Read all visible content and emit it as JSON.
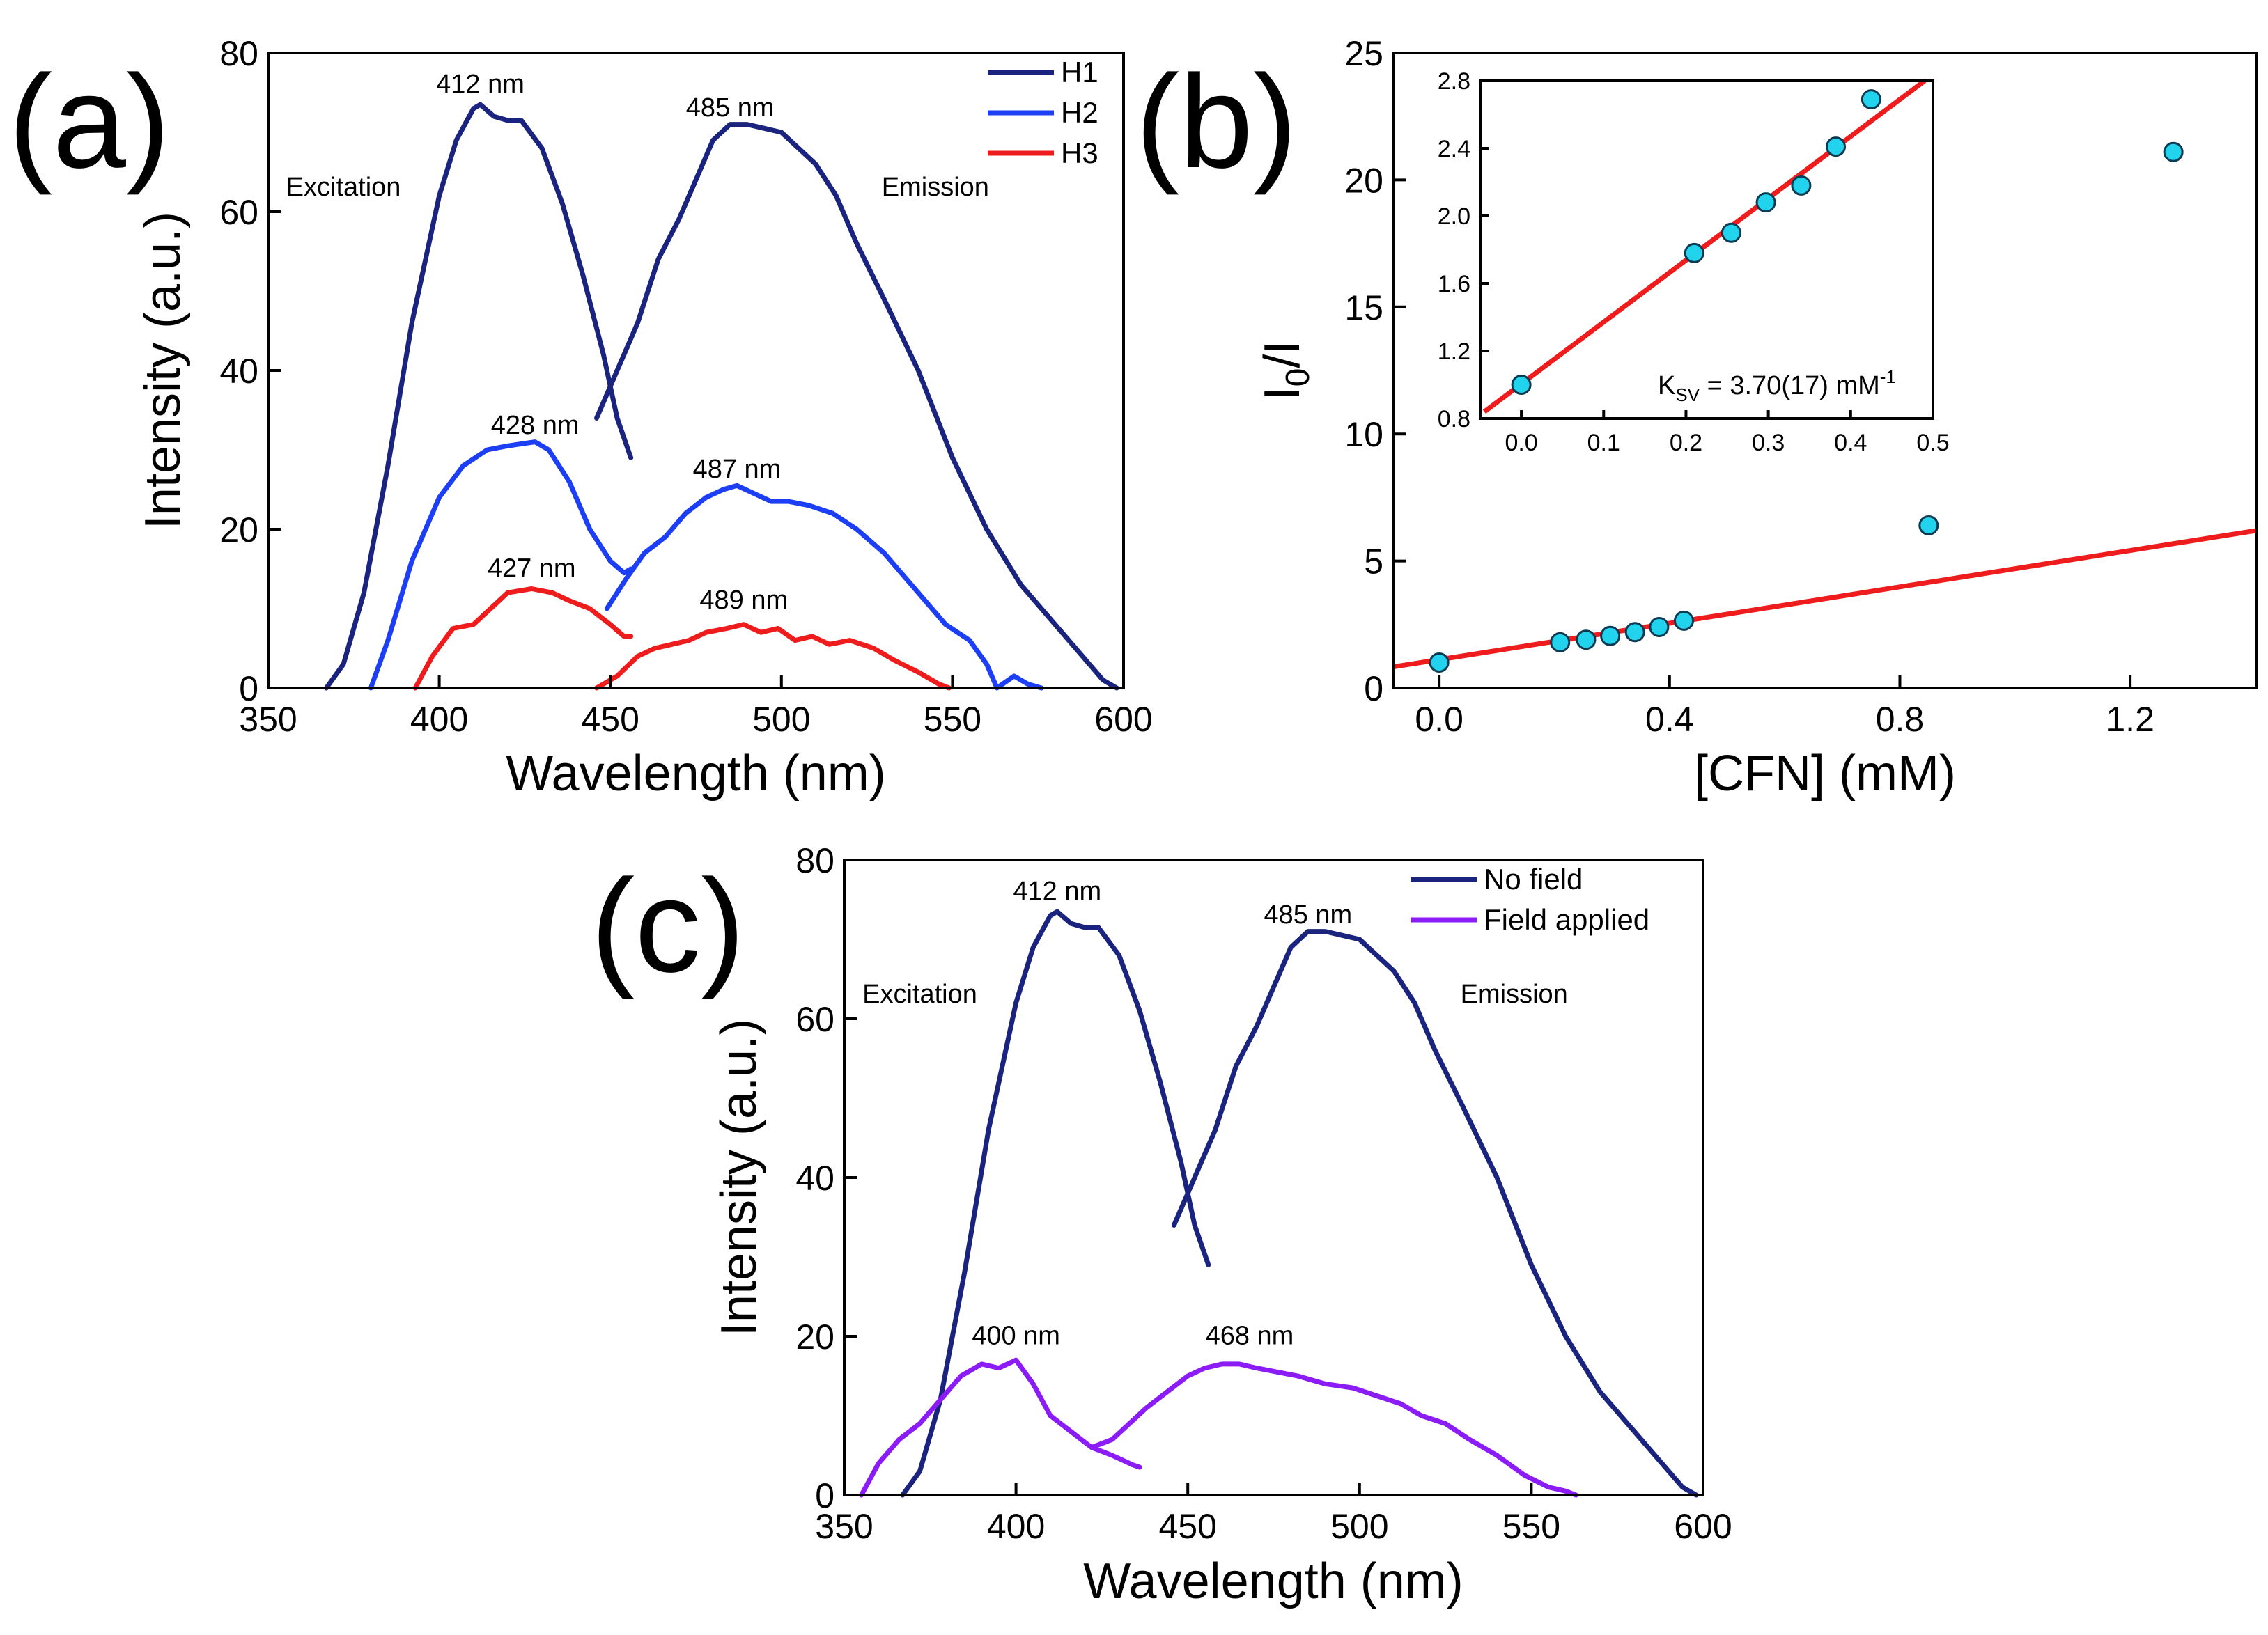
{
  "panels": {
    "a": {
      "letter": "(a)"
    },
    "b": {
      "letter": "(b)"
    },
    "c": {
      "letter": "(c)"
    }
  },
  "chart_data": [
    {
      "id": "a",
      "type": "line",
      "xlabel": "Wavelength (nm)",
      "ylabel": "Intensity (a.u.)",
      "xlim": [
        350,
        600
      ],
      "ylim": [
        0,
        80
      ],
      "xticks": [
        350,
        400,
        450,
        500,
        550,
        600
      ],
      "yticks": [
        0,
        20,
        40,
        60,
        80
      ],
      "legend_position": "top-right",
      "legend": [
        {
          "name": "H1",
          "color": "#1a237e"
        },
        {
          "name": "H2",
          "color": "#1c3ff5"
        },
        {
          "name": "H3",
          "color": "#ee1c1c"
        }
      ],
      "series": [
        {
          "name": "H1",
          "part": "excitation",
          "color": "#1a237e",
          "x": [
            367,
            372,
            378,
            385,
            392,
            400,
            405,
            410,
            412,
            416,
            420,
            424,
            430,
            436,
            442,
            448,
            452,
            456
          ],
          "y": [
            0,
            3,
            12,
            28,
            46,
            62,
            69,
            73,
            73.5,
            72,
            71.5,
            71.5,
            68,
            61,
            52,
            42,
            34,
            29
          ]
        },
        {
          "name": "H1",
          "part": "emission",
          "color": "#1a237e",
          "x": [
            446,
            452,
            458,
            464,
            470,
            476,
            480,
            485,
            490,
            495,
            500,
            505,
            510,
            516,
            522,
            530,
            540,
            550,
            560,
            570,
            580,
            588,
            594,
            598
          ],
          "y": [
            34,
            40,
            46,
            54,
            59,
            65,
            69,
            71,
            71,
            70.5,
            70,
            68,
            66,
            62,
            56,
            49,
            40,
            29,
            20,
            13,
            8,
            4,
            1,
            0
          ]
        },
        {
          "name": "H2",
          "part": "excitation",
          "color": "#1c3ff5",
          "x": [
            380,
            385,
            392,
            400,
            407,
            414,
            420,
            428,
            432,
            438,
            444,
            450,
            454,
            456
          ],
          "y": [
            0,
            6,
            16,
            24,
            28,
            30,
            30.5,
            31,
            30,
            26,
            20,
            16,
            14.5,
            15
          ]
        },
        {
          "name": "H2",
          "part": "emission",
          "color": "#1c3ff5",
          "x": [
            449,
            455,
            460,
            466,
            472,
            478,
            483,
            487,
            492,
            497,
            502,
            508,
            515,
            522,
            530,
            540,
            548,
            555,
            560,
            563,
            568,
            572,
            576
          ],
          "y": [
            10,
            14,
            17,
            19,
            22,
            24,
            25,
            25.5,
            24.5,
            23.5,
            23.5,
            23,
            22,
            20,
            17,
            12,
            8,
            6,
            3,
            0,
            1.5,
            0.5,
            0
          ]
        },
        {
          "name": "H3",
          "part": "excitation",
          "color": "#ee1c1c",
          "x": [
            393,
            398,
            404,
            410,
            415,
            420,
            427,
            433,
            438,
            444,
            450,
            454,
            456
          ],
          "y": [
            0,
            4,
            7.5,
            8,
            10,
            12,
            12.5,
            12,
            11,
            10,
            8,
            6.5,
            6.5
          ]
        },
        {
          "name": "H3",
          "part": "emission",
          "color": "#ee1c1c",
          "x": [
            446,
            452,
            458,
            463,
            468,
            473,
            478,
            484,
            489,
            494,
            499,
            504,
            509,
            514,
            520,
            527,
            533,
            540,
            546,
            549
          ],
          "y": [
            0,
            1.5,
            4,
            5,
            5.5,
            6,
            7,
            7.5,
            8,
            7,
            7.5,
            6,
            6.5,
            5.5,
            6,
            5,
            3.5,
            2,
            0.5,
            0
          ]
        }
      ],
      "annotations": [
        {
          "text": "412 nm",
          "x": 412,
          "y": 75
        },
        {
          "text": "485 nm",
          "x": 485,
          "y": 72
        },
        {
          "text": "Excitation",
          "x": 372,
          "y": 62
        },
        {
          "text": "Emission",
          "x": 545,
          "y": 62
        },
        {
          "text": "428 nm",
          "x": 428,
          "y": 32
        },
        {
          "text": "487 nm",
          "x": 487,
          "y": 26.5
        },
        {
          "text": "427 nm",
          "x": 427,
          "y": 14
        },
        {
          "text": "489 nm",
          "x": 489,
          "y": 10
        }
      ]
    },
    {
      "id": "b",
      "type": "scatter",
      "xlabel": "[CFN] (mM)",
      "ylabel": "I0/I",
      "ylabel_main": "I",
      "ylabel_sub": "0",
      "ylabel_tail": "/I",
      "xlim": [
        -0.08,
        1.42
      ],
      "ylim": [
        0,
        25
      ],
      "xticks": [
        0.0,
        0.4,
        0.8,
        1.2
      ],
      "yticks": [
        0,
        5,
        10,
        15,
        20,
        25
      ],
      "marker_color": "#22d3ee",
      "fit_color": "#ee1c1c",
      "series": [
        {
          "name": "I0/I",
          "x": [
            0.0,
            0.21,
            0.255,
            0.297,
            0.34,
            0.382,
            0.425,
            0.85,
            1.275
          ],
          "y": [
            1.0,
            1.8,
            1.9,
            2.05,
            2.2,
            2.4,
            2.65,
            6.4,
            21.1
          ]
        }
      ],
      "fit": {
        "x": [
          -0.08,
          1.42
        ],
        "y": [
          0.83,
          6.2
        ]
      },
      "inset": {
        "type": "scatter",
        "xlim": [
          -0.05,
          0.5
        ],
        "ylim": [
          0.8,
          2.8
        ],
        "xticks": [
          0.0,
          0.1,
          0.2,
          0.3,
          0.4,
          0.5
        ],
        "yticks": [
          0.8,
          1.2,
          1.6,
          2.0,
          2.4,
          2.8
        ],
        "x": [
          0.0,
          0.21,
          0.255,
          0.297,
          0.34,
          0.382,
          0.425
        ],
        "y": [
          1.0,
          1.78,
          1.9,
          2.08,
          2.18,
          2.41,
          2.69
        ],
        "fit": {
          "x": [
            -0.045,
            0.49
          ],
          "y": [
            0.84,
            2.8
          ]
        },
        "label": "KSV = 3.70(17) mM-1",
        "label_main": "K",
        "label_sub": "SV",
        "label_value": " = 3.70(17) mM",
        "label_sup": "-1"
      }
    },
    {
      "id": "c",
      "type": "line",
      "xlabel": "Wavelength (nm)",
      "ylabel": "Intensity (a.u.)",
      "xlim": [
        350,
        600
      ],
      "ylim": [
        0,
        80
      ],
      "xticks": [
        350,
        400,
        450,
        500,
        550,
        600
      ],
      "yticks": [
        0,
        20,
        40,
        60,
        80
      ],
      "legend_position": "top-right",
      "legend": [
        {
          "name": "No field",
          "color": "#1a237e"
        },
        {
          "name": "Field applied",
          "color": "#8b1cf5"
        }
      ],
      "series": [
        {
          "name": "No field",
          "part": "excitation",
          "color": "#1a237e",
          "x": [
            367,
            372,
            378,
            385,
            392,
            400,
            405,
            410,
            412,
            416,
            420,
            424,
            430,
            436,
            442,
            448,
            452,
            456
          ],
          "y": [
            0,
            3,
            12,
            28,
            46,
            62,
            69,
            73,
            73.5,
            72,
            71.5,
            71.5,
            68,
            61,
            52,
            42,
            34,
            29
          ]
        },
        {
          "name": "No field",
          "part": "emission",
          "color": "#1a237e",
          "x": [
            446,
            452,
            458,
            464,
            470,
            476,
            480,
            485,
            490,
            495,
            500,
            505,
            510,
            516,
            522,
            530,
            540,
            550,
            560,
            570,
            580,
            588,
            594,
            598
          ],
          "y": [
            34,
            40,
            46,
            54,
            59,
            65,
            69,
            71,
            71,
            70.5,
            70,
            68,
            66,
            62,
            56,
            49,
            40,
            29,
            20,
            13,
            8,
            4,
            1,
            0
          ]
        },
        {
          "name": "Field applied",
          "part": "excitation",
          "color": "#8b1cf5",
          "x": [
            355,
            360,
            366,
            372,
            378,
            384,
            390,
            395,
            400,
            405,
            410,
            416,
            422,
            428,
            434,
            436
          ],
          "y": [
            0,
            4,
            7,
            9,
            12,
            15,
            16.5,
            16,
            17,
            14,
            10,
            8,
            6,
            5,
            3.8,
            3.5
          ]
        },
        {
          "name": "Field applied",
          "part": "emission",
          "color": "#8b1cf5",
          "x": [
            422,
            428,
            433,
            438,
            444,
            450,
            455,
            460,
            465,
            470,
            476,
            482,
            490,
            498,
            505,
            512,
            518,
            525,
            532,
            540,
            548,
            555,
            560,
            563
          ],
          "y": [
            6,
            7,
            9,
            11,
            13,
            15,
            16,
            16.5,
            16.5,
            16,
            15.5,
            15,
            14,
            13.5,
            12.5,
            11.5,
            10,
            9,
            7,
            5,
            2.5,
            1,
            0.5,
            0
          ]
        }
      ],
      "annotations": [
        {
          "text": "412 nm",
          "x": 412,
          "y": 75
        },
        {
          "text": "485 nm",
          "x": 485,
          "y": 72
        },
        {
          "text": "Excitation",
          "x": 372,
          "y": 62
        },
        {
          "text": "Emission",
          "x": 545,
          "y": 62
        },
        {
          "text": "400 nm",
          "x": 400,
          "y": 19
        },
        {
          "text": "468 nm",
          "x": 468,
          "y": 19
        }
      ]
    }
  ]
}
